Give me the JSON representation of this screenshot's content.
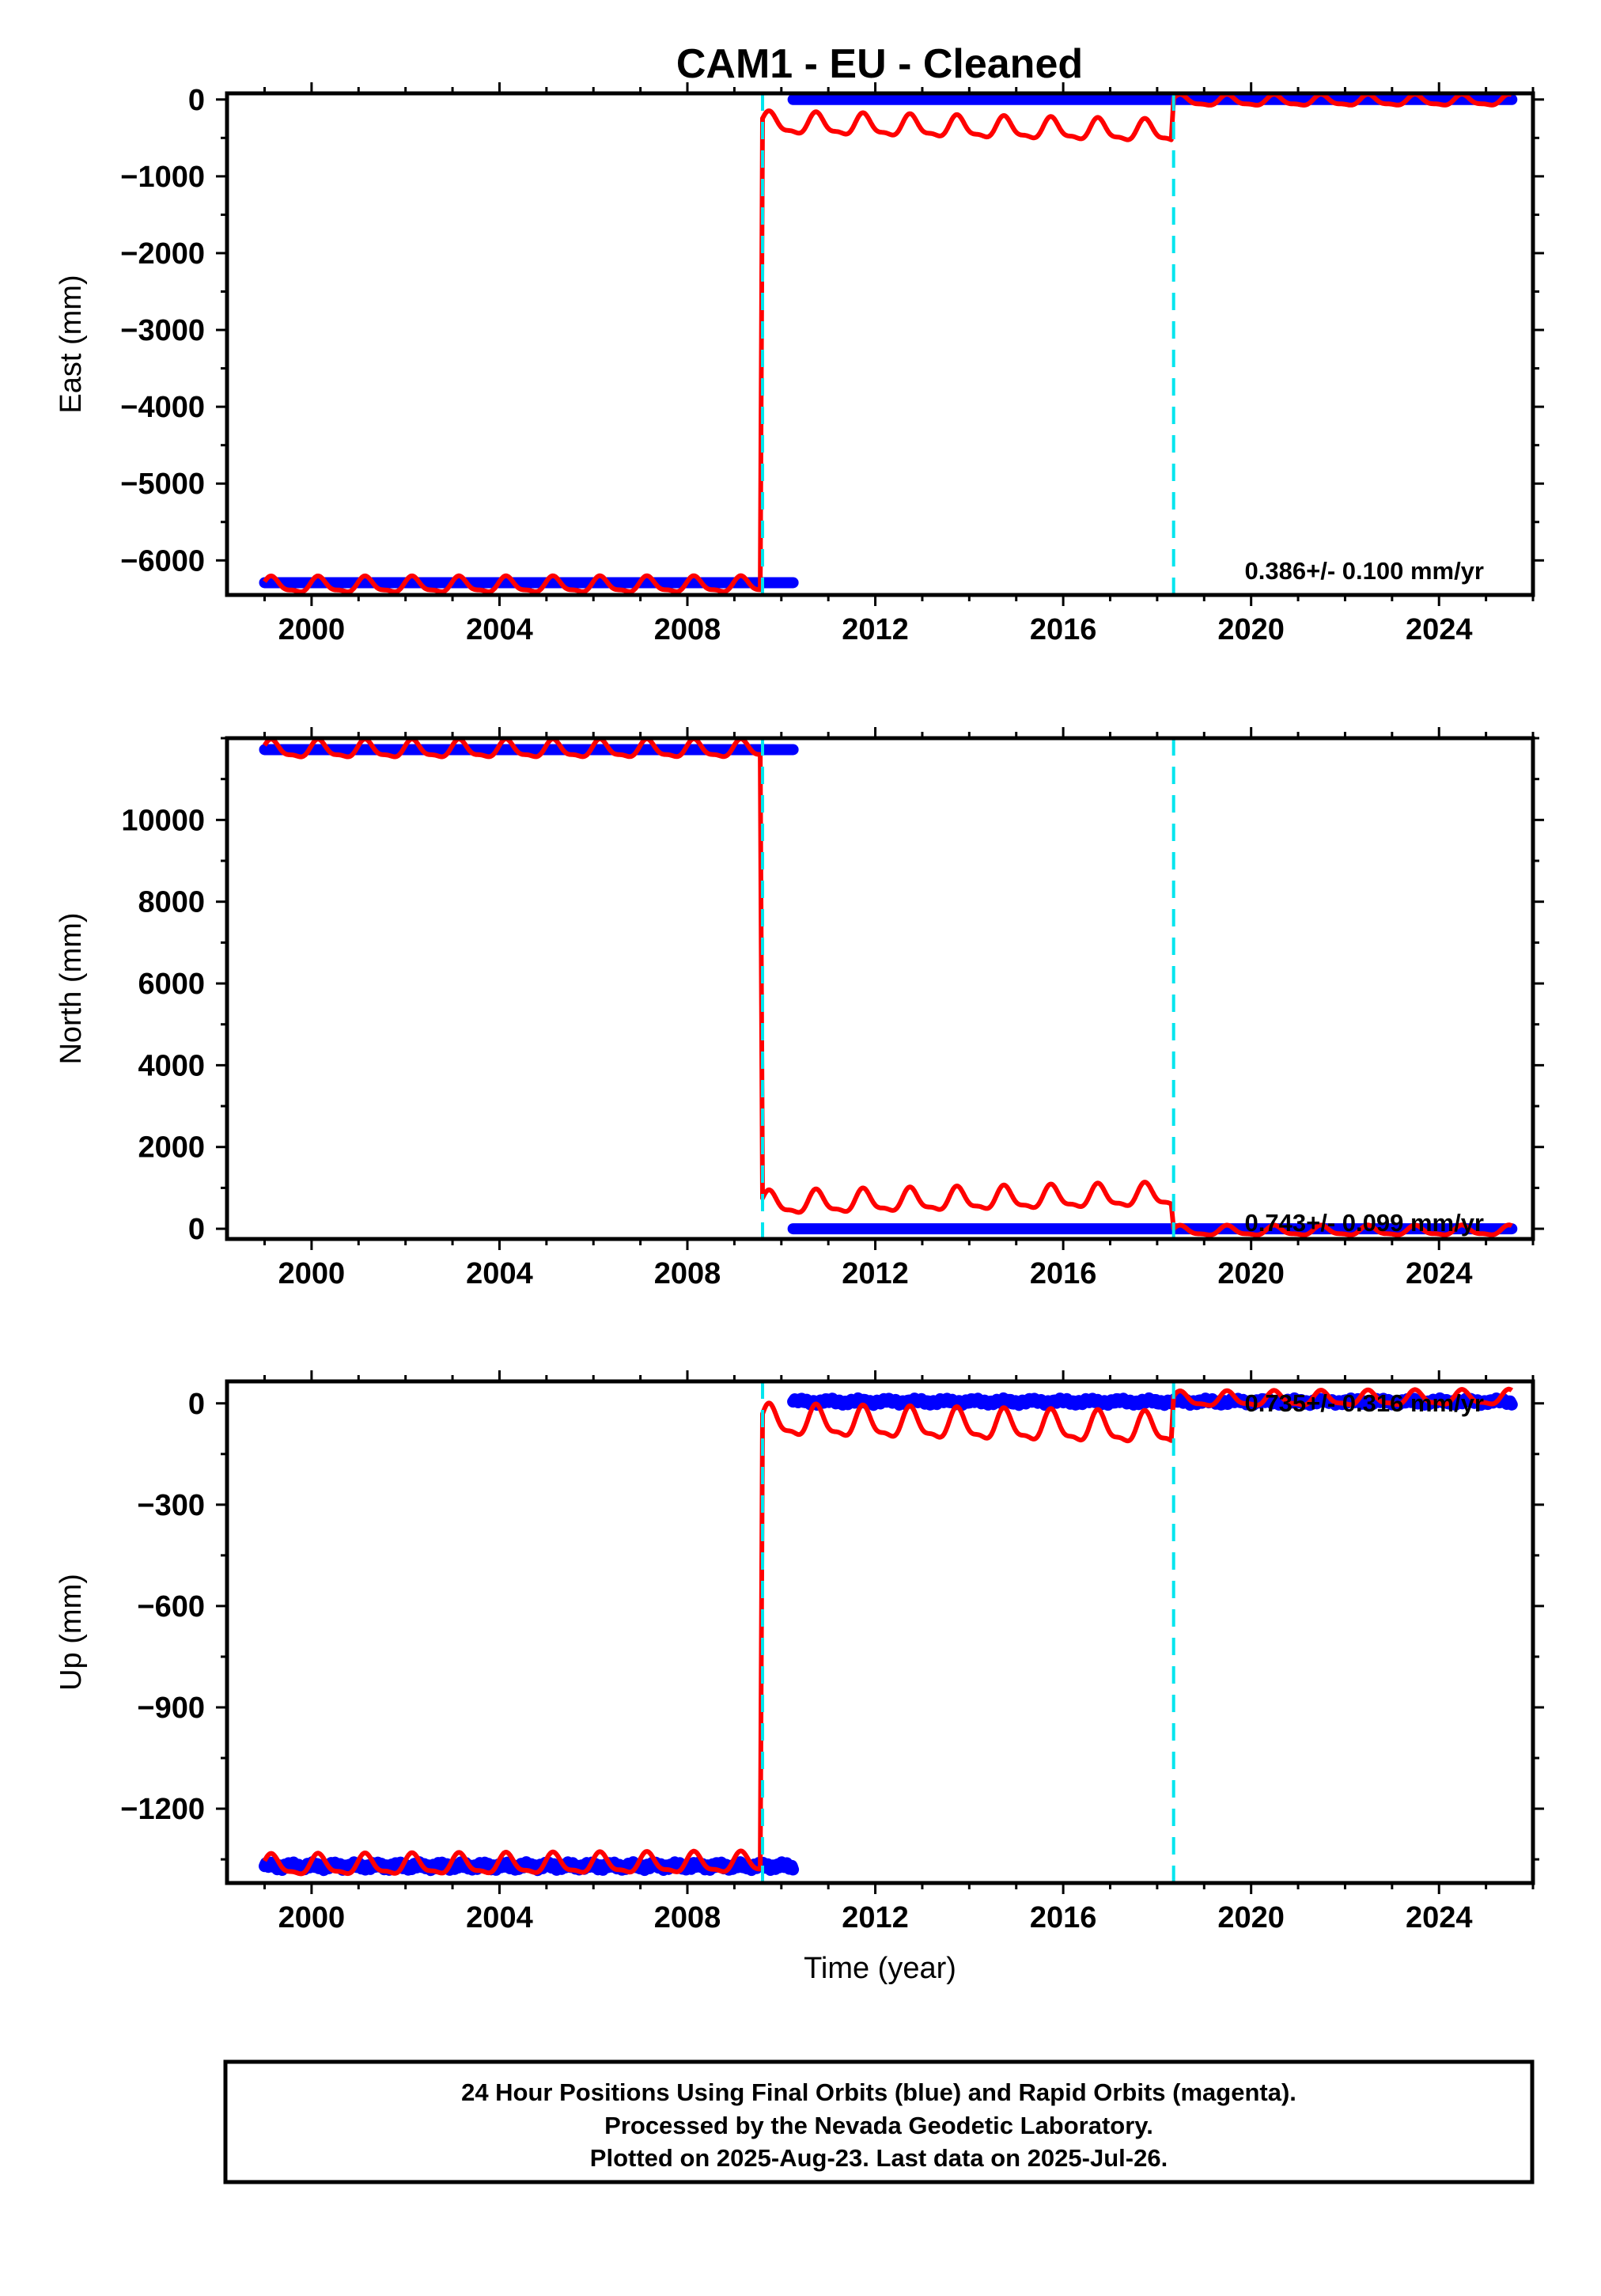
{
  "chart_title": "CAM1  - EU - Cleaned",
  "colors": {
    "final_orbits": "#0000ff",
    "model_fit": "#ff0000",
    "break_lines": "#00e5ee",
    "frame": "#000000"
  },
  "chart_data": [
    {
      "type": "scatter",
      "component": "east",
      "ylabel": "East (mm)",
      "xlabel": "",
      "xlim": [
        1998.2,
        2026.0
      ],
      "ylim": [
        -6450,
        80
      ],
      "xticks": [
        2000,
        2004,
        2008,
        2012,
        2016,
        2020,
        2024
      ],
      "yticks": [
        0,
        -1000,
        -2000,
        -3000,
        -4000,
        -5000,
        -6000
      ],
      "ytick_labels": [
        "0",
        "−1000",
        "−2000",
        "−3000",
        "−4000",
        "−5000",
        "−6000"
      ],
      "ytick_minor_step": 500,
      "rate_text": "0.386+/- 0.100 mm/yr",
      "breaks": [
        2009.6,
        2018.35
      ],
      "series": [
        {
          "role": "final_orbits",
          "segments": [
            {
              "x_start": 1999.0,
              "x_end": 2010.25,
              "y": -6290
            },
            {
              "x_start": 2010.25,
              "x_end": 2025.55,
              "y": 0
            }
          ]
        },
        {
          "role": "model_fit",
          "segments": [
            {
              "x_start": 1999.0,
              "x_end": 2009.55,
              "y_base": -6330,
              "y_slope": 0.386,
              "amplitude": 95
            },
            {
              "x_start": 2009.6,
              "x_end": 2018.3,
              "y_base": -320,
              "y_slope": 0.386,
              "amplitude": 130,
              "trend": -110
            },
            {
              "x_start": 2018.35,
              "x_end": 2025.55,
              "y_base": -20,
              "y_slope": 0.386,
              "amplitude": 65
            }
          ]
        }
      ]
    },
    {
      "type": "scatter",
      "component": "north",
      "ylabel": "North (mm)",
      "xlabel": "",
      "xlim": [
        1998.2,
        2026.0
      ],
      "ylim": [
        -250,
        12000
      ],
      "xticks": [
        2000,
        2004,
        2008,
        2012,
        2016,
        2020,
        2024
      ],
      "yticks": [
        0,
        2000,
        4000,
        6000,
        8000,
        10000
      ],
      "ytick_labels": [
        "0",
        "2000",
        "4000",
        "6000",
        "8000",
        "10000"
      ],
      "ytick_minor_step": 1000,
      "rate_text": "0.743+/- 0.099 mm/yr",
      "breaks": [
        2009.6,
        2018.35
      ],
      "series": [
        {
          "role": "final_orbits",
          "segments": [
            {
              "x_start": 1999.0,
              "x_end": 2010.25,
              "y": 11720
            },
            {
              "x_start": 2010.25,
              "x_end": 2025.55,
              "y": 0
            }
          ]
        },
        {
          "role": "model_fit",
          "segments": [
            {
              "x_start": 1999.0,
              "x_end": 2009.55,
              "y_base": 11710,
              "y_slope": 0.743,
              "amplitude": 200
            },
            {
              "x_start": 2009.6,
              "x_end": 2018.3,
              "y_base": 600,
              "y_slope": 0.743,
              "amplitude": 260,
              "trend": 200
            },
            {
              "x_start": 2018.35,
              "x_end": 2025.55,
              "y_base": -60,
              "y_slope": 0.743,
              "amplitude": 110
            }
          ]
        }
      ]
    },
    {
      "type": "scatter",
      "component": "up",
      "ylabel": "Up (mm)",
      "xlabel": "Time (year)",
      "xlim": [
        1998.2,
        2026.0
      ],
      "ylim": [
        -1420,
        65
      ],
      "xticks": [
        2000,
        2004,
        2008,
        2012,
        2016,
        2020,
        2024
      ],
      "yticks": [
        0,
        -300,
        -600,
        -900,
        -1200
      ],
      "ytick_labels": [
        "0",
        "−300",
        "−600",
        "−900",
        "−1200"
      ],
      "ytick_minor_step": 150,
      "rate_text": "0.735+/- 0.316 mm/yr",
      "breaks": [
        2009.6,
        2018.35
      ],
      "series": [
        {
          "role": "final_orbits",
          "segments": [
            {
              "x_start": 1999.0,
              "x_end": 2010.25,
              "y": -1370,
              "scatter": 12
            },
            {
              "x_start": 2010.25,
              "x_end": 2025.55,
              "y": 5,
              "scatter": 10
            }
          ]
        },
        {
          "role": "model_fit",
          "segments": [
            {
              "x_start": 1999.0,
              "x_end": 2009.55,
              "y_base": -1370,
              "y_slope": 0.735,
              "amplitude": 28
            },
            {
              "x_start": 2009.6,
              "x_end": 2018.3,
              "y_base": -55,
              "y_slope": 0.735,
              "amplitude": 42,
              "trend": -30
            },
            {
              "x_start": 2018.35,
              "x_end": 2025.55,
              "y_base": 10,
              "y_slope": 0.735,
              "amplitude": 20
            }
          ]
        }
      ]
    }
  ],
  "caption": {
    "line1": "24 Hour Positions Using Final Orbits (blue) and Rapid Orbits (magenta).",
    "line2": "Processed by the Nevada Geodetic Laboratory.",
    "line3": "Plotted on 2025-Aug-23. Last data on 2025-Jul-26."
  }
}
